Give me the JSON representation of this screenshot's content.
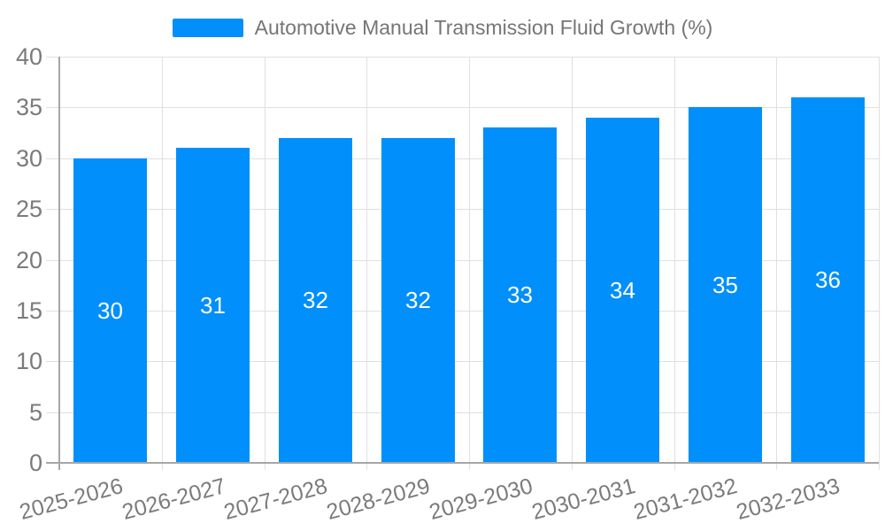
{
  "chart_data": {
    "type": "bar",
    "title": "",
    "legend": {
      "label": "Automotive Manual Transmission Fluid Growth (%)",
      "position": "top"
    },
    "categories": [
      "2025-2026",
      "2026-2027",
      "2027-2028",
      "2028-2029",
      "2029-2030",
      "2030-2031",
      "2031-2032",
      "2032-2033"
    ],
    "series": [
      {
        "name": "Automotive Manual Transmission Fluid Growth (%)",
        "values": [
          30,
          31,
          32,
          32,
          33,
          34,
          35,
          36
        ]
      }
    ],
    "bar_labels": [
      "30",
      "31",
      "32",
      "32",
      "33",
      "34",
      "35",
      "36"
    ],
    "y_ticks": [
      0,
      5,
      10,
      15,
      20,
      25,
      30,
      35,
      40
    ],
    "ylim": [
      0,
      40
    ],
    "xlabel": "",
    "ylabel": "",
    "grid": true,
    "bar_label_position": "middle",
    "x_label_rotation_deg": -15,
    "colors": {
      "bar": "#008FFB",
      "bar_label": "#ffffff",
      "axis_label": "#7b7b7b",
      "legend_text": "#757575",
      "grid": "#e0e0e0",
      "axis_line": "#a6a6a6",
      "background": "#ffffff"
    }
  }
}
